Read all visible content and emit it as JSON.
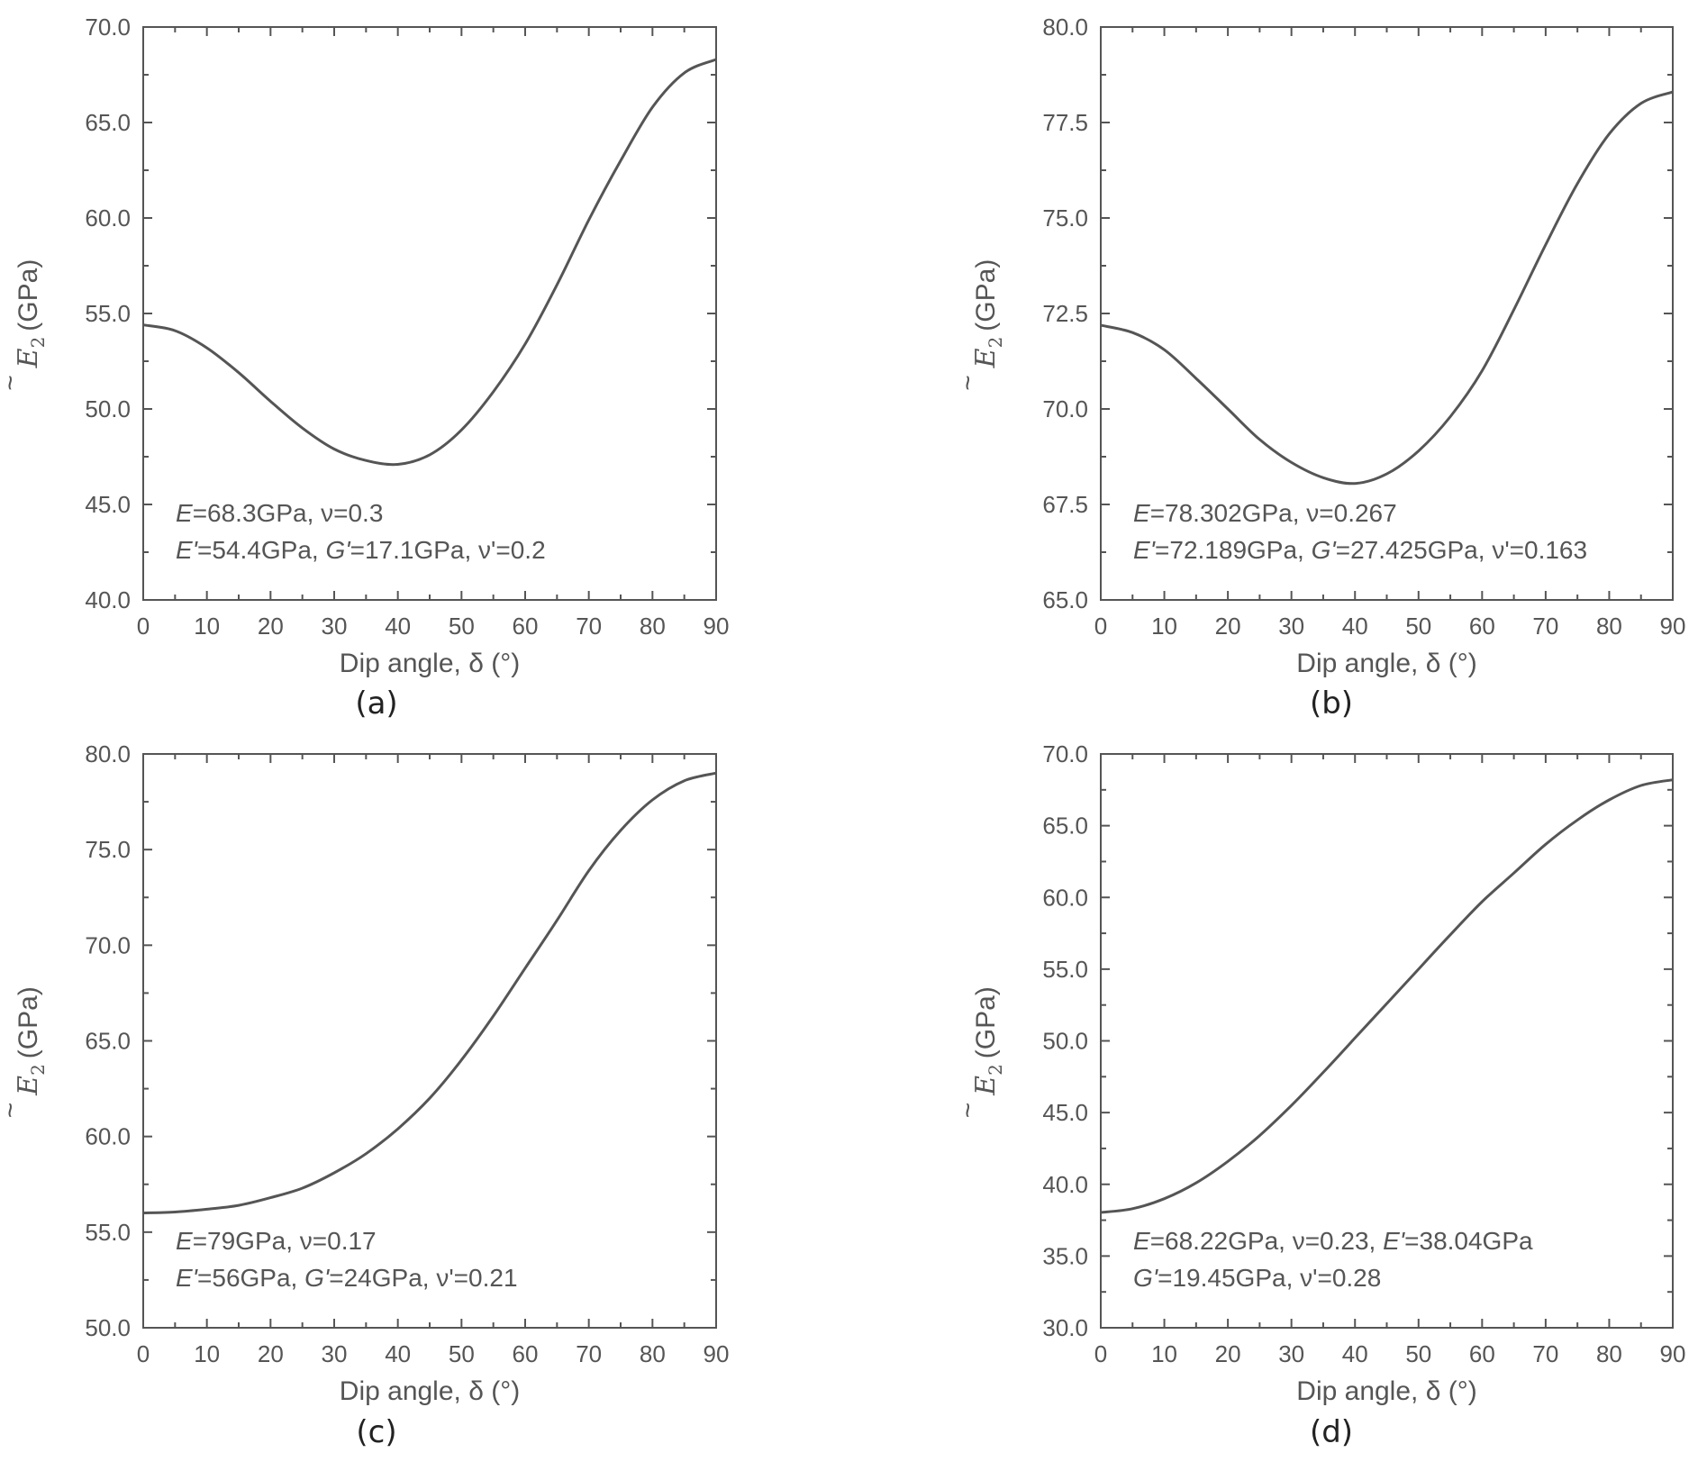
{
  "chart_data": [
    {
      "id": "a",
      "type": "line",
      "caption": "(a)",
      "xlabel": "Dip angle, δ (°)",
      "ylabel_unit": "(GPa)",
      "ylabel_symbol": "E",
      "ylabel_sub": "2",
      "ylabel_tilde": "~",
      "xlim": [
        0,
        90
      ],
      "ylim": [
        40,
        70
      ],
      "xticks": [
        "0",
        "10",
        "20",
        "30",
        "40",
        "50",
        "60",
        "70",
        "80",
        "90"
      ],
      "yticks": [
        "40.0",
        "45.0",
        "50.0",
        "55.0",
        "60.0",
        "65.0",
        "70.0"
      ],
      "annotation": [
        [
          {
            "t": "E",
            "i": true
          },
          {
            "t": "=68.3GPa, ν=0.3"
          }
        ],
        [
          {
            "t": "E'",
            "i": true
          },
          {
            "t": "=54.4GPa, "
          },
          {
            "t": "G'",
            "i": true
          },
          {
            "t": "=17.1GPa, ν'=0.2"
          }
        ]
      ],
      "x": [
        0,
        5,
        10,
        15,
        20,
        25,
        30,
        35,
        40,
        45,
        50,
        55,
        60,
        65,
        70,
        75,
        80,
        85,
        90
      ],
      "values": [
        54.4,
        54.1,
        53.2,
        51.9,
        50.4,
        49.0,
        47.9,
        47.3,
        47.1,
        47.6,
        48.9,
        50.9,
        53.4,
        56.5,
        59.9,
        63.0,
        65.8,
        67.6,
        68.3
      ]
    },
    {
      "id": "b",
      "type": "line",
      "caption": "(b)",
      "xlabel": "Dip angle, δ (°)",
      "ylabel_unit": "(GPa)",
      "ylabel_symbol": "E",
      "ylabel_sub": "2",
      "ylabel_tilde": "~",
      "xlim": [
        0,
        90
      ],
      "ylim": [
        65,
        80
      ],
      "xticks": [
        "0",
        "10",
        "20",
        "30",
        "40",
        "50",
        "60",
        "70",
        "80",
        "90"
      ],
      "yticks": [
        "65.0",
        "67.5",
        "70.0",
        "72.5",
        "75.0",
        "77.5",
        "80.0"
      ],
      "annotation": [
        [
          {
            "t": "E",
            "i": true
          },
          {
            "t": "=78.302GPa, ν=0.267"
          }
        ],
        [
          {
            "t": "E'",
            "i": true
          },
          {
            "t": "=72.189GPa, "
          },
          {
            "t": "G'",
            "i": true
          },
          {
            "t": "=27.425GPa, ν'=0.163"
          }
        ]
      ],
      "x": [
        0,
        5,
        10,
        15,
        20,
        25,
        30,
        35,
        40,
        45,
        50,
        55,
        60,
        65,
        70,
        75,
        80,
        85,
        90
      ],
      "values": [
        72.19,
        72.0,
        71.55,
        70.8,
        70.0,
        69.2,
        68.6,
        68.2,
        68.05,
        68.3,
        68.9,
        69.8,
        71.0,
        72.6,
        74.3,
        75.9,
        77.2,
        78.0,
        78.3
      ]
    },
    {
      "id": "c",
      "type": "line",
      "caption": "(c)",
      "xlabel": "Dip angle, δ (°)",
      "ylabel_unit": "(GPa)",
      "ylabel_symbol": "E",
      "ylabel_sub": "2",
      "ylabel_tilde": "~",
      "xlim": [
        0,
        90
      ],
      "ylim": [
        50,
        80
      ],
      "xticks": [
        "0",
        "10",
        "20",
        "30",
        "40",
        "50",
        "60",
        "70",
        "80",
        "90"
      ],
      "yticks": [
        "50.0",
        "55.0",
        "60.0",
        "65.0",
        "70.0",
        "75.0",
        "80.0"
      ],
      "annotation": [
        [
          {
            "t": "E",
            "i": true
          },
          {
            "t": "=79GPa, ν=0.17"
          }
        ],
        [
          {
            "t": "E'",
            "i": true
          },
          {
            "t": "=56GPa, "
          },
          {
            "t": "G'",
            "i": true
          },
          {
            "t": "=24GPa, ν'=0.21"
          }
        ]
      ],
      "x": [
        0,
        5,
        10,
        15,
        20,
        25,
        30,
        35,
        40,
        45,
        50,
        55,
        60,
        65,
        70,
        75,
        80,
        85,
        90
      ],
      "values": [
        56.0,
        56.05,
        56.2,
        56.4,
        56.8,
        57.3,
        58.1,
        59.1,
        60.4,
        62.0,
        64.0,
        66.3,
        68.8,
        71.3,
        73.9,
        76.0,
        77.6,
        78.6,
        79.0
      ]
    },
    {
      "id": "d",
      "type": "line",
      "caption": "(d)",
      "xlabel": "Dip angle, δ (°)",
      "ylabel_unit": "(GPa)",
      "ylabel_symbol": "E",
      "ylabel_sub": "2",
      "ylabel_tilde": "~",
      "xlim": [
        0,
        90
      ],
      "ylim": [
        30,
        70
      ],
      "xticks": [
        "0",
        "10",
        "20",
        "30",
        "40",
        "50",
        "60",
        "70",
        "80",
        "90"
      ],
      "yticks": [
        "30.0",
        "35.0",
        "40.0",
        "45.0",
        "50.0",
        "55.0",
        "60.0",
        "65.0",
        "70.0"
      ],
      "annotation": [
        [
          {
            "t": "E",
            "i": true
          },
          {
            "t": "=68.22GPa, ν=0.23, "
          },
          {
            "t": "E'",
            "i": true
          },
          {
            "t": "=38.04GPa"
          }
        ],
        [
          {
            "t": "G'",
            "i": true
          },
          {
            "t": "=19.45GPa, ν'=0.28"
          }
        ]
      ],
      "x": [
        0,
        5,
        10,
        15,
        20,
        25,
        30,
        35,
        40,
        45,
        50,
        55,
        60,
        65,
        70,
        75,
        80,
        85,
        90
      ],
      "values": [
        38.04,
        38.3,
        39.0,
        40.1,
        41.6,
        43.4,
        45.5,
        47.8,
        50.2,
        52.6,
        55.0,
        57.4,
        59.7,
        61.7,
        63.7,
        65.4,
        66.8,
        67.8,
        68.2
      ]
    }
  ]
}
